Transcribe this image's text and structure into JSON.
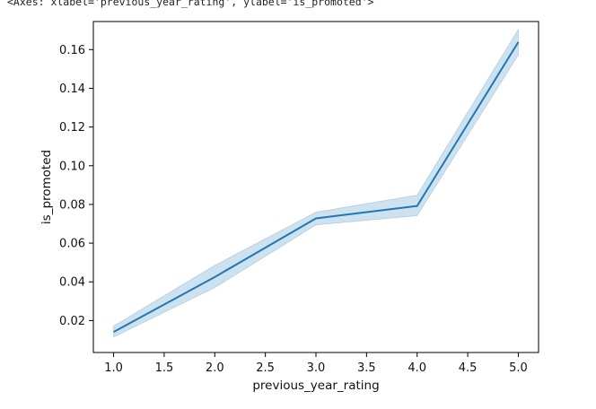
{
  "repr_text": "<Axes: xlabel='previous_year_rating', ylabel='is_promoted'>",
  "chart_data": {
    "type": "line",
    "xlabel": "previous_year_rating",
    "ylabel": "is_promoted",
    "xlim": [
      0.8,
      5.2
    ],
    "ylim": [
      0.0035,
      0.1745
    ],
    "x_ticks": [
      "1.0",
      "1.5",
      "2.0",
      "2.5",
      "3.0",
      "3.5",
      "4.0",
      "4.5",
      "5.0"
    ],
    "y_ticks": [
      "0.02",
      "0.04",
      "0.06",
      "0.08",
      "0.10",
      "0.12",
      "0.14",
      "0.16"
    ],
    "grid": false,
    "colors": {
      "line": "#1f77b4",
      "band": "#1f77b4"
    },
    "series": [
      {
        "x": [
          1.0,
          2.0,
          3.0,
          4.0,
          5.0
        ],
        "y": [
          0.0141,
          0.0425,
          0.0728,
          0.0792,
          0.1639
        ],
        "ci_low": [
          0.0115,
          0.037,
          0.0694,
          0.0742,
          0.1573
        ],
        "ci_high": [
          0.0171,
          0.0485,
          0.076,
          0.0848,
          0.1704
        ]
      }
    ]
  }
}
